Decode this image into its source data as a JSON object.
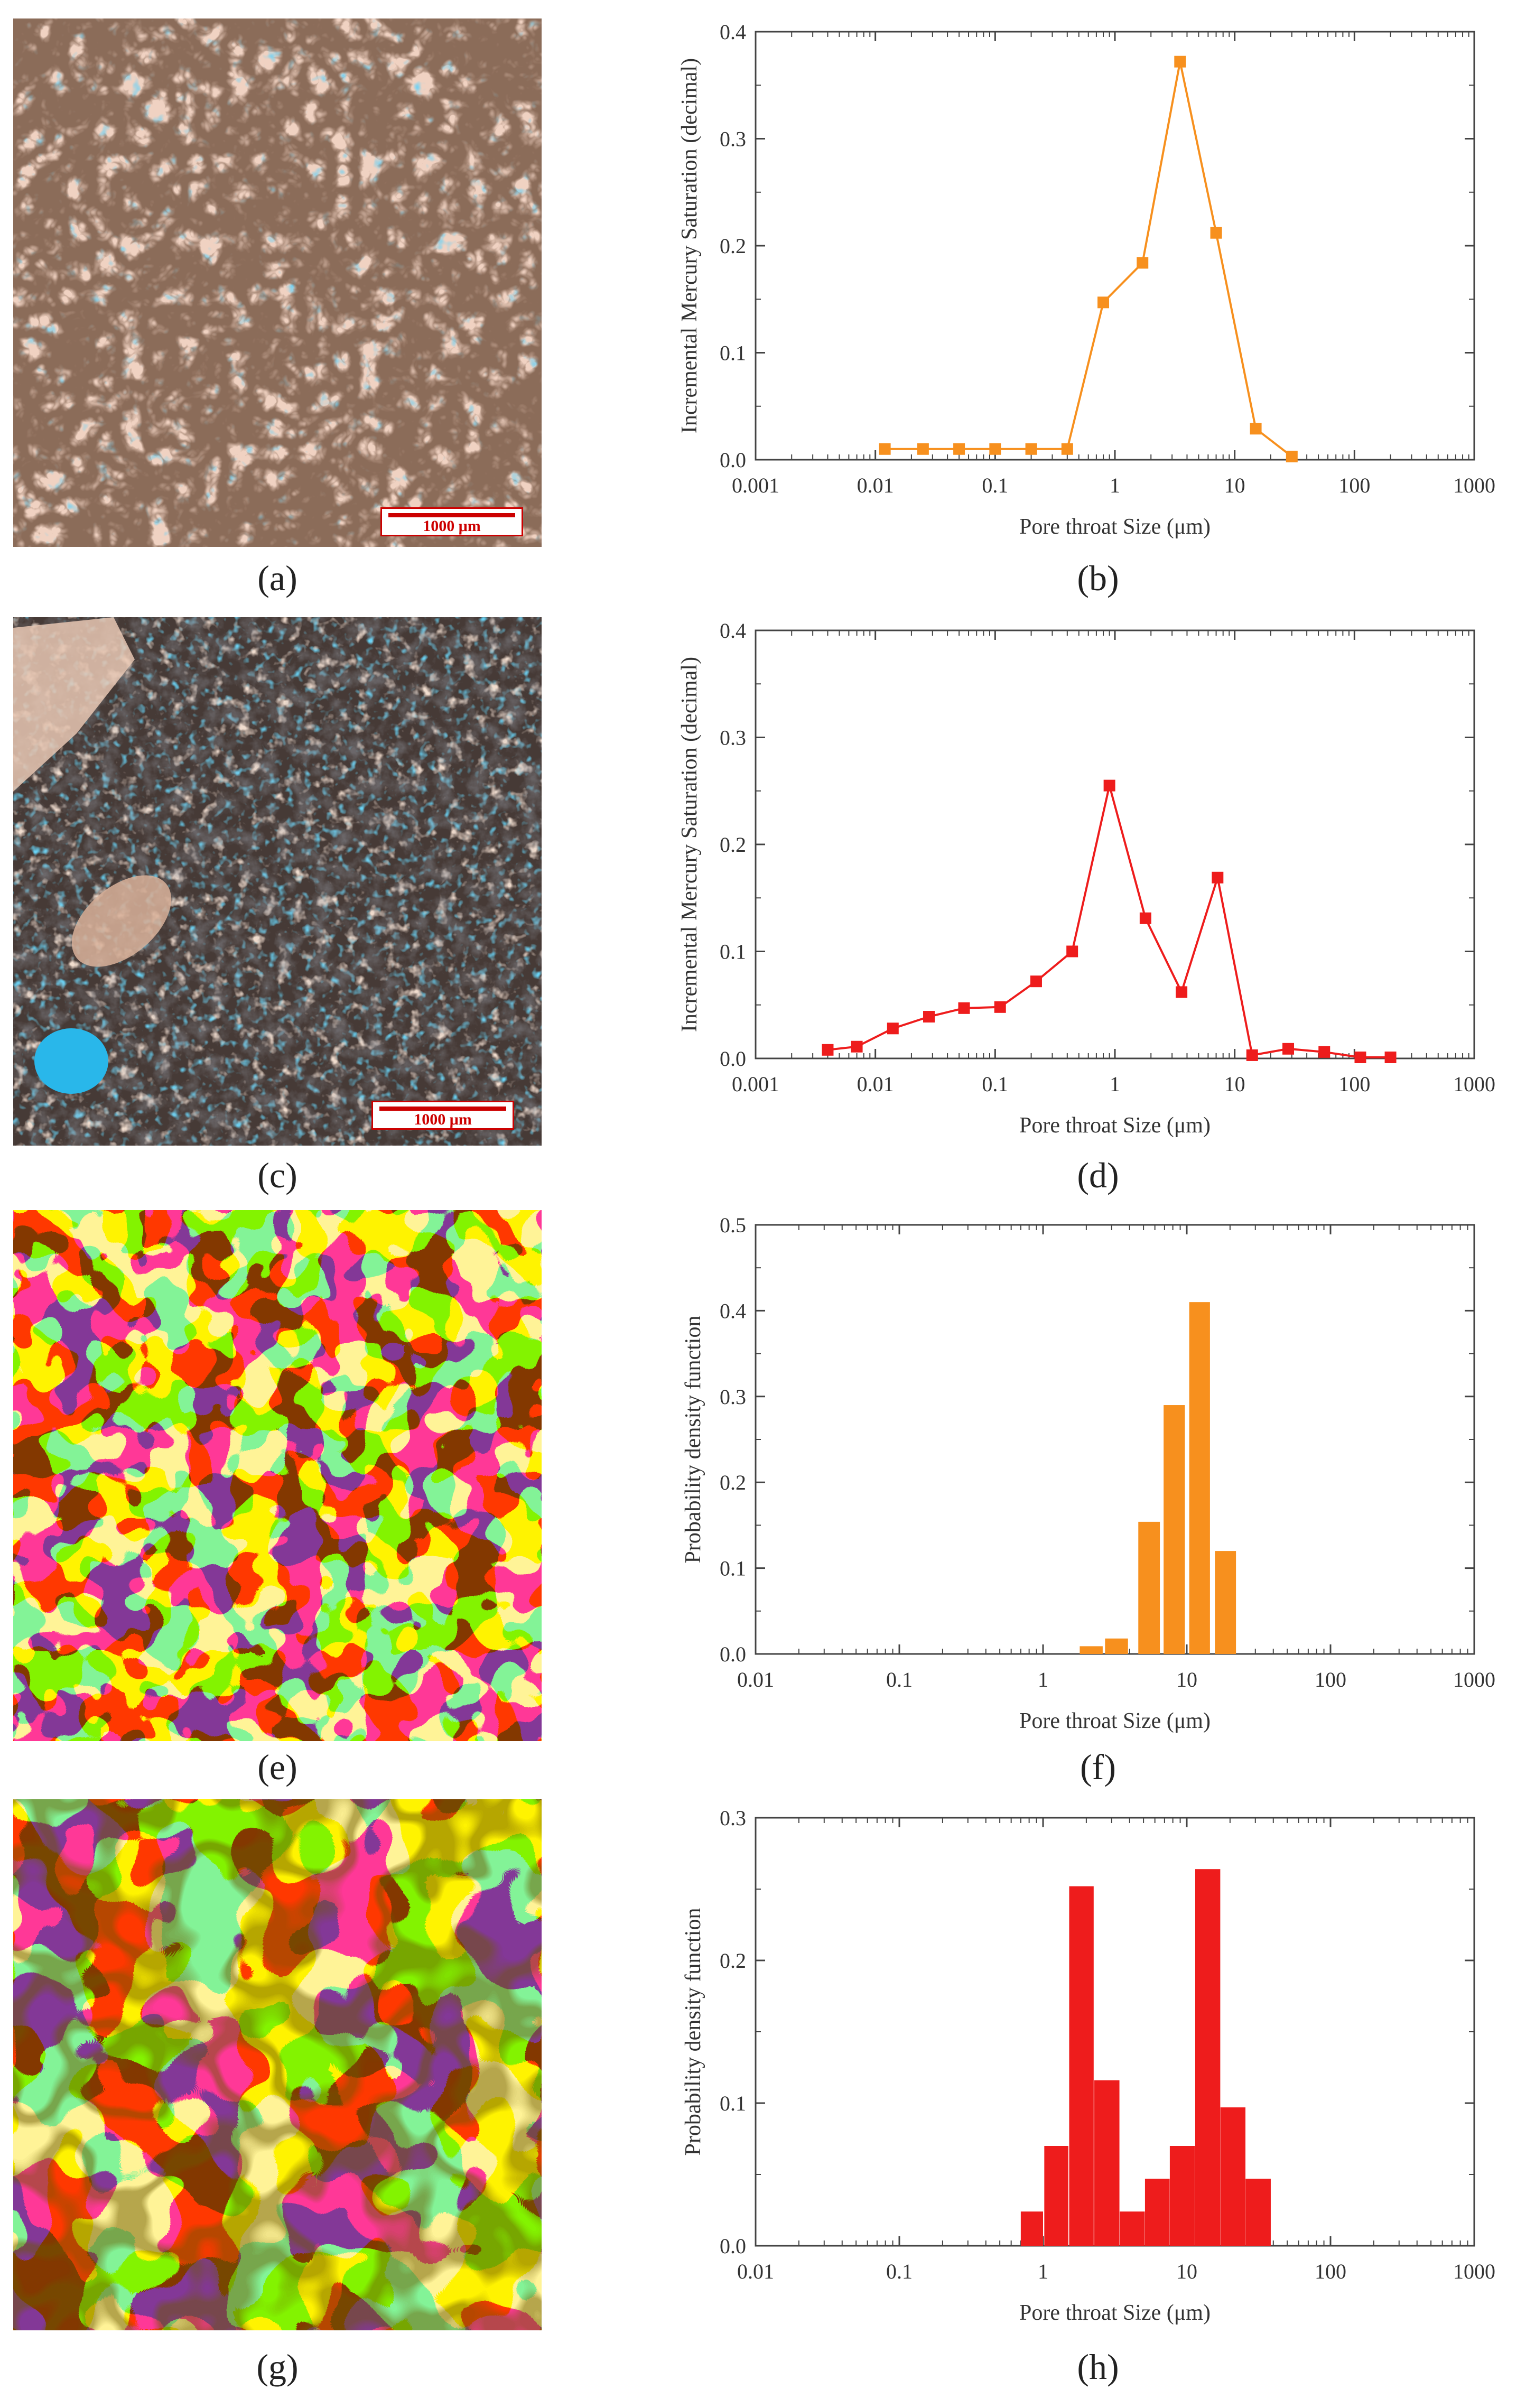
{
  "panels": {
    "a": {
      "label": "(a)",
      "scale_label": "1000 μm"
    },
    "b": {
      "label": "(b)"
    },
    "c": {
      "label": "(c)",
      "scale_label": "1000 μm"
    },
    "d": {
      "label": "(d)"
    },
    "e": {
      "label": "(e)"
    },
    "f": {
      "label": "(f)"
    },
    "g": {
      "label": "(g)"
    },
    "h": {
      "label": "(h)"
    }
  },
  "colors": {
    "orange": "#f7901e",
    "red": "#ee1c1c",
    "yellow": "#ffe600",
    "purple": "#3b0b4f",
    "pore_blue": "#2aa4e8",
    "grain_brown": "#4a2a1c"
  },
  "chart_data": [
    {
      "id": "b",
      "type": "line",
      "color": "#f7901e",
      "xlabel": "Pore throat Size (μm)",
      "ylabel": "Incremental Mercury Saturation (decimal)",
      "xlog": true,
      "xlim": [
        0.001,
        1000
      ],
      "ylim": [
        0,
        0.4
      ],
      "xticks": [
        0.001,
        0.01,
        0.1,
        1,
        10,
        100,
        1000
      ],
      "xticklabels": [
        "0.001",
        "0.01",
        "0.1",
        "1",
        "10",
        "100",
        "1000"
      ],
      "yticks": [
        0,
        0.1,
        0.2,
        0.3,
        0.4
      ],
      "yticklabels": [
        "0.0",
        "0.1",
        "0.2",
        "0.3",
        "0.4"
      ],
      "x": [
        0.012,
        0.025,
        0.05,
        0.1,
        0.2,
        0.4,
        0.8,
        1.7,
        3.5,
        7.0,
        15,
        30
      ],
      "y": [
        0.01,
        0.01,
        0.01,
        0.01,
        0.01,
        0.01,
        0.147,
        0.184,
        0.372,
        0.212,
        0.029,
        0.003
      ]
    },
    {
      "id": "d",
      "type": "line",
      "color": "#ee1c1c",
      "xlabel": "Pore throat Size (μm)",
      "ylabel": "Incremental Mercury Saturation (decimal)",
      "xlog": true,
      "xlim": [
        0.001,
        1000
      ],
      "ylim": [
        0,
        0.4
      ],
      "xticks": [
        0.001,
        0.01,
        0.1,
        1,
        10,
        100,
        1000
      ],
      "xticklabels": [
        "0.001",
        "0.01",
        "0.1",
        "1",
        "10",
        "100",
        "1000"
      ],
      "yticks": [
        0,
        0.1,
        0.2,
        0.3,
        0.4
      ],
      "yticklabels": [
        "0.0",
        "0.1",
        "0.2",
        "0.3",
        "0.4"
      ],
      "x": [
        0.004,
        0.007,
        0.014,
        0.028,
        0.055,
        0.11,
        0.22,
        0.44,
        0.9,
        1.8,
        3.6,
        7.2,
        14,
        28,
        56,
        112,
        200
      ],
      "y": [
        0.008,
        0.011,
        0.028,
        0.039,
        0.047,
        0.048,
        0.072,
        0.1,
        0.255,
        0.131,
        0.062,
        0.169,
        0.003,
        0.009,
        0.006,
        0.001,
        0.001
      ]
    },
    {
      "id": "f",
      "type": "bar",
      "color": "#f7901e",
      "xlabel": "Pore throat Size (μm)",
      "ylabel": "Probability density function",
      "xlog": true,
      "xlim": [
        0.01,
        1000
      ],
      "ylim": [
        0,
        0.5
      ],
      "xticks": [
        0.01,
        0.1,
        1,
        10,
        100,
        1000
      ],
      "xticklabels": [
        "0.01",
        "0.1",
        "1",
        "10",
        "100",
        "1000"
      ],
      "yticks": [
        0,
        0.1,
        0.2,
        0.3,
        0.4,
        0.5
      ],
      "yticklabels": [
        "0.0",
        "0.1",
        "0.2",
        "0.3",
        "0.4",
        "0.5"
      ],
      "bins": [
        [
          1.8,
          2.6
        ],
        [
          2.7,
          3.9
        ],
        [
          4.6,
          6.5
        ],
        [
          6.9,
          9.7
        ],
        [
          10.4,
          14.5
        ],
        [
          15.7,
          22
        ]
      ],
      "values": [
        0.009,
        0.018,
        0.154,
        0.29,
        0.41,
        0.12
      ]
    },
    {
      "id": "h",
      "type": "bar",
      "color": "#ee1c1c",
      "xlabel": "Pore throat Size (μm)",
      "ylabel": "Probability density function",
      "xlog": true,
      "xlim": [
        0.01,
        1000
      ],
      "ylim": [
        0,
        0.3
      ],
      "xticks": [
        0.01,
        0.1,
        1,
        10,
        100,
        1000
      ],
      "xticklabels": [
        "0.01",
        "0.1",
        "1",
        "10",
        "100",
        "1000"
      ],
      "yticks": [
        0,
        0.1,
        0.2,
        0.3
      ],
      "yticklabels": [
        "0.0",
        "0.1",
        "0.2",
        "0.3"
      ],
      "bins": [
        [
          0.7,
          1.0
        ],
        [
          1.02,
          1.5
        ],
        [
          1.52,
          2.25
        ],
        [
          2.27,
          3.4
        ],
        [
          3.42,
          5.1
        ],
        [
          5.12,
          7.6
        ],
        [
          7.62,
          11.4
        ],
        [
          11.45,
          17.1
        ],
        [
          17.15,
          25.6
        ],
        [
          25.65,
          38.4
        ],
        [
          38.45,
          57.6
        ]
      ],
      "values": [
        0.024,
        0.07,
        0.252,
        0.116,
        0.024,
        0.047,
        0.07,
        0.264,
        0.097,
        0.047,
        0.0
      ]
    }
  ]
}
